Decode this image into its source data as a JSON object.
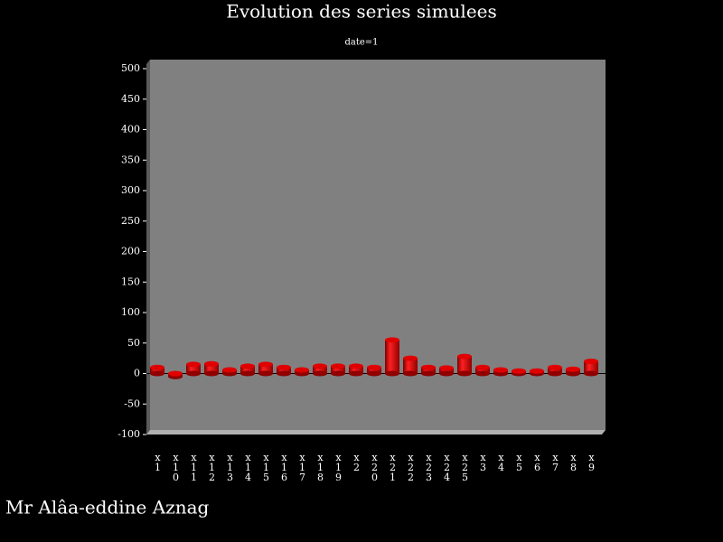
{
  "chart_data": {
    "type": "bar",
    "title": "Evolution des series simulees",
    "subtitle": "date=1",
    "categories": [
      "x1",
      "x10",
      "x11",
      "x12",
      "x13",
      "x14",
      "x15",
      "x16",
      "x17",
      "x18",
      "x19",
      "x2",
      "x20",
      "x21",
      "x22",
      "x23",
      "x24",
      "x25",
      "x3",
      "x4",
      "x5",
      "x6",
      "x7",
      "x8",
      "x9"
    ],
    "values": [
      10,
      -5,
      15,
      16,
      6,
      12,
      15,
      10,
      6,
      12,
      12,
      12,
      10,
      55,
      25,
      10,
      9,
      28,
      10,
      6,
      4,
      4,
      10,
      7,
      20
    ],
    "color": "#e00000",
    "ylim": [
      -100,
      500
    ],
    "yticks": [
      -100,
      -50,
      0,
      50,
      100,
      150,
      200,
      250,
      300,
      350,
      400,
      450,
      500
    ],
    "author": "Mr Alâa-eddine Aznag"
  }
}
